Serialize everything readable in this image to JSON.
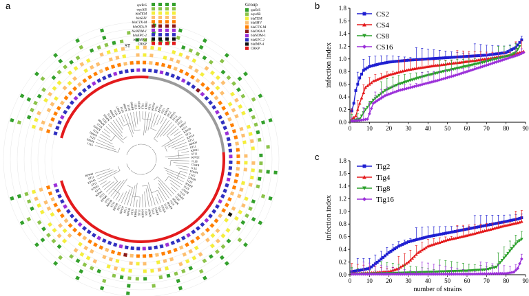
{
  "figure": {
    "panels": {
      "a": "a",
      "b": "b",
      "c": "c"
    }
  },
  "tree": {
    "st_label": "ST",
    "legend_left": [
      "qnrB/S",
      "oqxAB",
      "blaTEM",
      "blaSHV",
      "blaCTX-M",
      "blaOXA-9",
      "blaNDM-1",
      "blaKPC-2",
      "blaIMP-4",
      "CRKP"
    ],
    "legend_group_title": "Group",
    "legend_group": [
      "qnrB/S",
      "oqxAB",
      "blaTEM",
      "blaSHV",
      "blaCTX-M",
      "blaOXA-9",
      "blaNDM-1",
      "blaKPC-2",
      "blaIMP-4",
      "CRKP"
    ],
    "group_colors": [
      "#33a02c",
      "#8bc34a",
      "#f4ee3c",
      "#fdbf6f",
      "#ff7f00",
      "#8b1a1a",
      "#9b30d9",
      "#3030c0",
      "#111111",
      "#e31a1c"
    ],
    "leaf_labels": [
      "ST11",
      "KP001",
      "ST11",
      "KP002",
      "ST11",
      "KP003",
      "ST15",
      "KP004",
      "ST11",
      "KP005",
      "ST23",
      "KP006",
      "ST11",
      "KP007",
      "ST11",
      "KP008",
      "ST11",
      "KP009",
      "ST11",
      "KP010",
      "ST11",
      "KP011",
      "ST11",
      "KP012",
      "ST11",
      "KP013",
      "ST11",
      "KP014",
      "ST11",
      "KP015",
      "ST11",
      "KP016",
      "ST11",
      "KP017",
      "ST11",
      "KP018",
      "ST11",
      "KP019",
      "ST11",
      "KP020",
      "ST11",
      "KP021",
      "ST11",
      "KP022",
      "ST11",
      "KP023",
      "ST11",
      "KP024",
      "ST11",
      "KP025",
      "ST11",
      "KP026",
      "ST11",
      "KP027",
      "ST11",
      "KP028",
      "ST11",
      "KP029",
      "ST11",
      "KP030",
      "ST11",
      "KP031",
      "ST11",
      "KP032",
      "ST11",
      "KP033",
      "ST11",
      "KP034",
      "ST11",
      "KP035",
      "ST11",
      "KP036",
      "ST11",
      "KP037",
      "ST11",
      "KP038",
      "ST11",
      "KP039",
      "ST11",
      "KP040",
      "ST11",
      "KP041",
      "ST11",
      "KP042",
      "ST11",
      "KP043",
      "ST11",
      "KP044"
    ]
  },
  "chart_data": [
    {
      "panel": "b",
      "type": "line",
      "xlabel": "",
      "ylabel": "infection index",
      "xlim": [
        0,
        90
      ],
      "ylim": [
        0,
        1.8
      ],
      "xticks": [
        0,
        10,
        20,
        30,
        40,
        50,
        60,
        70,
        80,
        90
      ],
      "yticks": [
        0.0,
        0.2,
        0.4,
        0.6,
        0.8,
        1.0,
        1.2,
        1.4,
        1.6,
        1.8
      ],
      "series": [
        {
          "name": "CS2",
          "color": "#1f1fd1",
          "marker": "square",
          "points": [
            [
              1,
              0.18
            ],
            [
              2,
              0.3
            ],
            [
              3,
              0.5
            ],
            [
              5,
              0.7
            ],
            [
              7,
              0.82
            ],
            [
              10,
              0.88
            ],
            [
              15,
              0.92
            ],
            [
              20,
              0.95
            ],
            [
              30,
              0.98
            ],
            [
              40,
              1.0
            ],
            [
              50,
              1.02
            ],
            [
              60,
              1.04
            ],
            [
              70,
              1.06
            ],
            [
              80,
              1.1
            ],
            [
              85,
              1.18
            ],
            [
              88,
              1.3
            ]
          ]
        },
        {
          "name": "CS4",
          "color": "#e41a1c",
          "marker": "triangle",
          "points": [
            [
              1,
              0.05
            ],
            [
              3,
              0.1
            ],
            [
              5,
              0.3
            ],
            [
              8,
              0.55
            ],
            [
              12,
              0.65
            ],
            [
              20,
              0.75
            ],
            [
              30,
              0.83
            ],
            [
              40,
              0.88
            ],
            [
              50,
              0.92
            ],
            [
              60,
              0.96
            ],
            [
              70,
              1.0
            ],
            [
              80,
              1.05
            ],
            [
              85,
              1.08
            ],
            [
              89,
              1.12
            ]
          ]
        },
        {
          "name": "CS8",
          "color": "#2ca02c",
          "marker": "triangle-down",
          "points": [
            [
              1,
              0.02
            ],
            [
              5,
              0.05
            ],
            [
              8,
              0.2
            ],
            [
              12,
              0.35
            ],
            [
              18,
              0.5
            ],
            [
              25,
              0.6
            ],
            [
              35,
              0.7
            ],
            [
              45,
              0.78
            ],
            [
              55,
              0.85
            ],
            [
              65,
              0.92
            ],
            [
              75,
              1.0
            ],
            [
              82,
              1.05
            ],
            [
              85,
              1.1
            ],
            [
              87,
              1.2
            ]
          ]
        },
        {
          "name": "CS16",
          "color": "#9b30d9",
          "marker": "diamond",
          "points": [
            [
              1,
              0.02
            ],
            [
              5,
              0.03
            ],
            [
              9,
              0.05
            ],
            [
              12,
              0.3
            ],
            [
              18,
              0.42
            ],
            [
              25,
              0.5
            ],
            [
              35,
              0.58
            ],
            [
              45,
              0.66
            ],
            [
              55,
              0.75
            ],
            [
              65,
              0.85
            ],
            [
              75,
              0.95
            ],
            [
              82,
              1.02
            ],
            [
              86,
              1.06
            ],
            [
              89,
              1.1
            ]
          ]
        }
      ],
      "legend": [
        "CS2",
        "CS4",
        "CS8",
        "CS16"
      ]
    },
    {
      "panel": "c",
      "type": "line",
      "xlabel": "number of strains",
      "ylabel": "infection index",
      "xlim": [
        0,
        90
      ],
      "ylim": [
        0,
        1.8
      ],
      "xticks": [
        0,
        10,
        20,
        30,
        40,
        50,
        60,
        70,
        80,
        90
      ],
      "yticks": [
        0.0,
        0.2,
        0.4,
        0.6,
        0.8,
        1.0,
        1.2,
        1.4,
        1.6,
        1.8
      ],
      "series": [
        {
          "name": "Tig2",
          "color": "#1f1fd1",
          "marker": "square",
          "points": [
            [
              1,
              0.05
            ],
            [
              5,
              0.07
            ],
            [
              10,
              0.1
            ],
            [
              15,
              0.22
            ],
            [
              20,
              0.35
            ],
            [
              25,
              0.45
            ],
            [
              30,
              0.52
            ],
            [
              40,
              0.6
            ],
            [
              50,
              0.66
            ],
            [
              60,
              0.72
            ],
            [
              70,
              0.78
            ],
            [
              80,
              0.84
            ],
            [
              86,
              0.88
            ],
            [
              88,
              0.9
            ]
          ]
        },
        {
          "name": "Tig4",
          "color": "#e41a1c",
          "marker": "triangle",
          "points": [
            [
              1,
              0.02
            ],
            [
              10,
              0.03
            ],
            [
              20,
              0.05
            ],
            [
              25,
              0.1
            ],
            [
              30,
              0.2
            ],
            [
              35,
              0.35
            ],
            [
              40,
              0.45
            ],
            [
              50,
              0.55
            ],
            [
              60,
              0.62
            ],
            [
              70,
              0.7
            ],
            [
              80,
              0.78
            ],
            [
              86,
              0.82
            ],
            [
              88,
              0.84
            ]
          ]
        },
        {
          "name": "Tig8",
          "color": "#2ca02c",
          "marker": "triangle-down",
          "points": [
            [
              1,
              0.01
            ],
            [
              20,
              0.02
            ],
            [
              40,
              0.04
            ],
            [
              60,
              0.06
            ],
            [
              70,
              0.08
            ],
            [
              75,
              0.12
            ],
            [
              80,
              0.3
            ],
            [
              84,
              0.45
            ],
            [
              86,
              0.52
            ],
            [
              88,
              0.56
            ]
          ]
        },
        {
          "name": "Tig16",
          "color": "#9b30d9",
          "marker": "diamond",
          "points": [
            [
              1,
              0.01
            ],
            [
              30,
              0.01
            ],
            [
              60,
              0.01
            ],
            [
              80,
              0.02
            ],
            [
              84,
              0.04
            ],
            [
              86,
              0.1
            ],
            [
              88,
              0.25
            ]
          ]
        }
      ],
      "legend": [
        "Tig2",
        "Tig4",
        "Tig8",
        "Tig16"
      ]
    }
  ]
}
